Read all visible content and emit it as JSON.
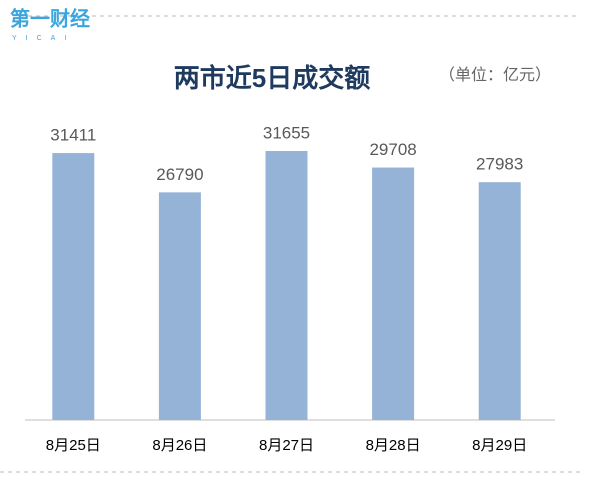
{
  "logo": "第一财经",
  "logo_sub": "YICAI",
  "chart_data": {
    "type": "bar",
    "title": "两市近5日成交额",
    "unit_note": "（单位：亿元）",
    "categories": [
      "8月25日",
      "8月26日",
      "8月27日",
      "8月28日",
      "8月29日"
    ],
    "values": [
      31411,
      26790,
      31655,
      29708,
      27983
    ],
    "color": "#95b3d7"
  }
}
